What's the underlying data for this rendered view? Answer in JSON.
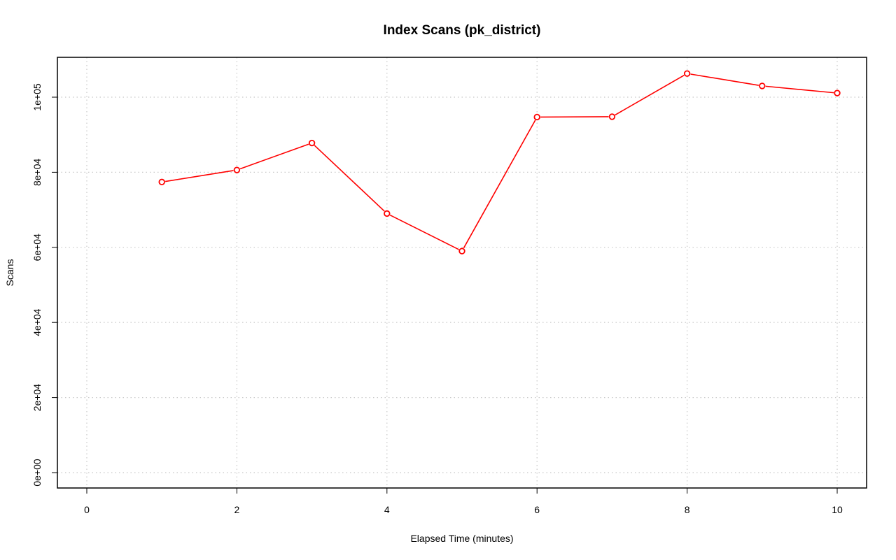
{
  "chart_data": {
    "type": "line",
    "title": "Index Scans (pk_district)",
    "xlabel": "Elapsed Time (minutes)",
    "ylabel": "Scans",
    "xlim": [
      0,
      10
    ],
    "ylim": [
      0,
      110000
    ],
    "x_ticks": [
      0,
      2,
      4,
      6,
      8,
      10
    ],
    "x_tick_labels": [
      "0",
      "2",
      "4",
      "6",
      "8",
      "10"
    ],
    "y_ticks": [
      0,
      20000,
      40000,
      60000,
      80000,
      100000
    ],
    "y_tick_labels": [
      "0e+00",
      "2e+04",
      "4e+04",
      "6e+04",
      "8e+04",
      "1e+05"
    ],
    "grid": true,
    "series": [
      {
        "color": "#ff0000",
        "x": [
          1,
          2,
          3,
          4,
          5,
          6,
          7,
          8,
          9,
          10
        ],
        "values": [
          77400,
          80600,
          87800,
          69000,
          59000,
          94700,
          94800,
          106300,
          103000,
          101100
        ]
      }
    ]
  }
}
